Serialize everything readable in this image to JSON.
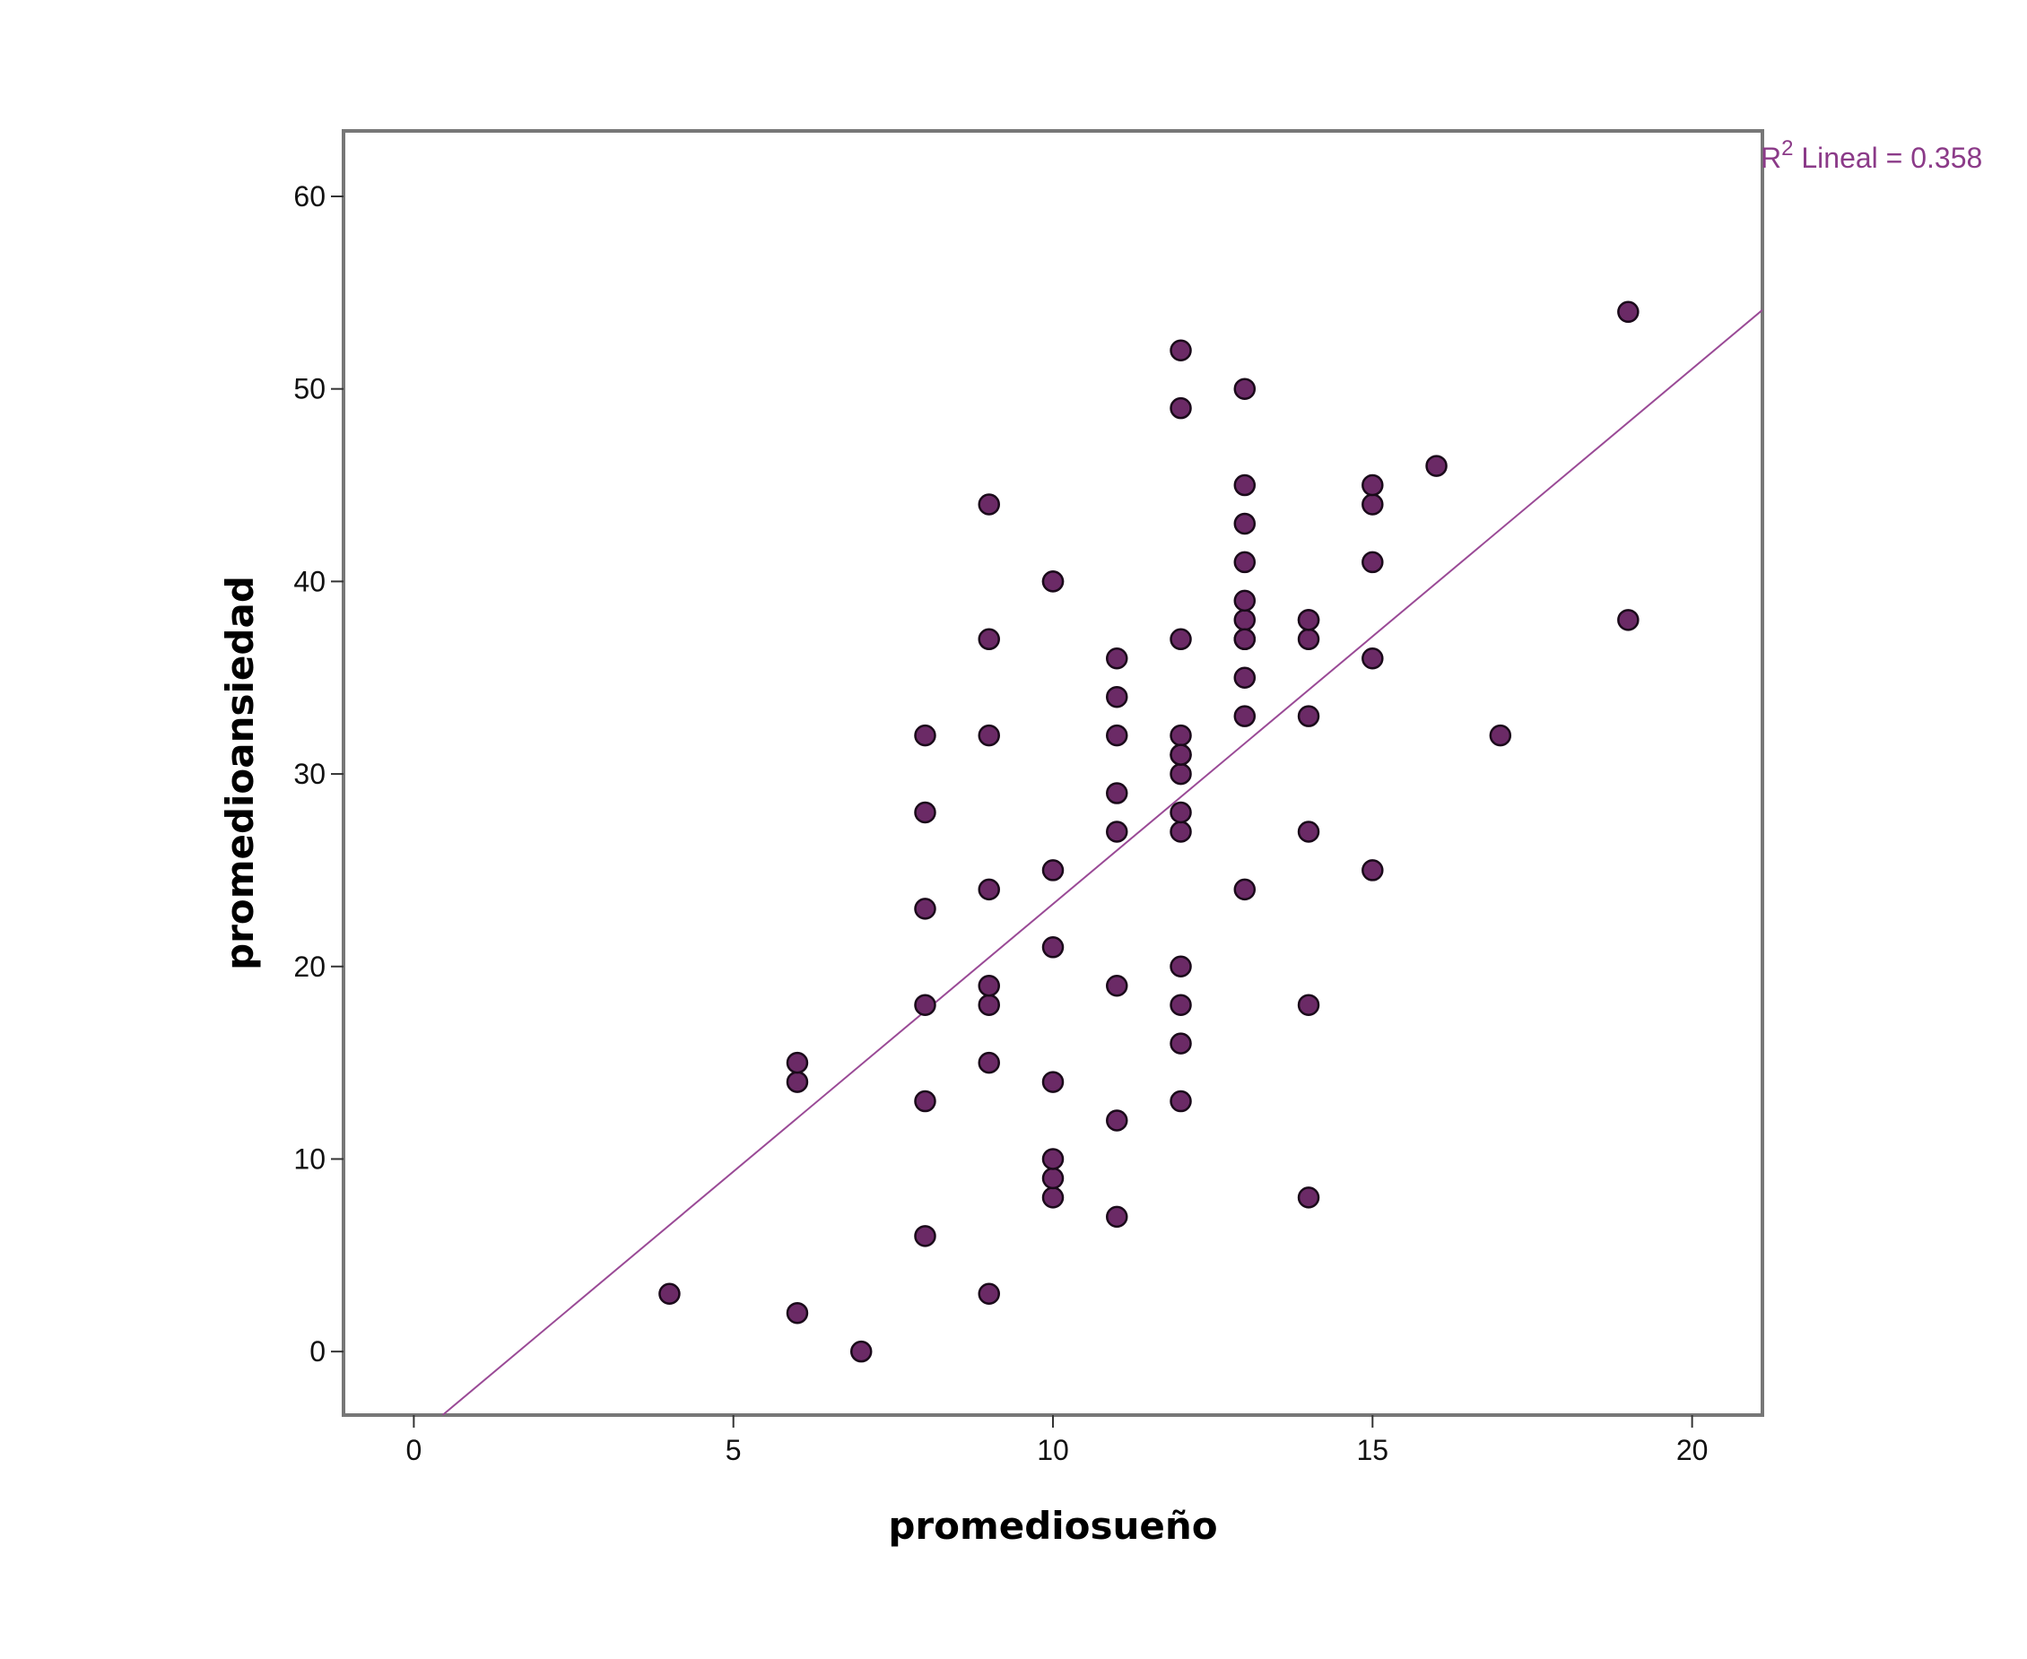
{
  "chart_data": {
    "type": "scatter",
    "title": "",
    "xlabel": "promediosueño",
    "ylabel": "promedioansiedad",
    "xlim": [
      -1.1,
      21.1
    ],
    "ylim": [
      -3.3,
      63.4
    ],
    "xticks": [
      0,
      5,
      10,
      15,
      20
    ],
    "yticks": [
      0,
      10,
      20,
      30,
      40,
      50,
      60
    ],
    "grid": false,
    "legend": "none",
    "colors": {
      "point": "#6b2a66",
      "point_stroke": "#1a0a1a",
      "fit_line": "#9a4a96",
      "fit_label": "#8b3a88",
      "frame": "#777777"
    },
    "fit_line": {
      "label_prefix": "R",
      "label_sup": "2",
      "label_suffix": " Lineal = 0.358",
      "r2": 0.358,
      "x": [
        0.45,
        21.1
      ],
      "y": [
        -3.3,
        54.1
      ]
    },
    "series": [
      {
        "x": [
          4,
          6,
          6,
          6,
          7,
          8,
          8,
          8,
          8,
          8,
          8,
          9,
          9,
          9,
          9,
          9,
          9,
          9,
          9,
          10,
          10,
          10,
          10,
          10,
          10,
          10,
          10,
          11,
          11,
          11,
          11,
          11,
          11,
          11,
          11,
          12,
          12,
          12,
          12,
          12,
          12,
          12,
          12,
          12,
          12,
          12,
          12,
          12,
          13,
          13,
          13,
          13,
          13,
          13,
          13,
          13,
          13,
          13,
          13,
          14,
          14,
          14,
          14,
          14,
          14,
          14,
          15,
          15,
          15,
          15,
          15,
          16,
          17,
          19,
          19
        ],
        "y": [
          3,
          2,
          14,
          15,
          0,
          6,
          13,
          18,
          23,
          28,
          32,
          3,
          15,
          18,
          19,
          24,
          32,
          37,
          44,
          8,
          9,
          10,
          14,
          21,
          25,
          40,
          40,
          7,
          12,
          19,
          27,
          29,
          32,
          34,
          36,
          13,
          16,
          18,
          20,
          27,
          28,
          30,
          31,
          32,
          37,
          49,
          52,
          31,
          24,
          33,
          35,
          37,
          38,
          39,
          41,
          43,
          45,
          50,
          37,
          8,
          18,
          27,
          33,
          37,
          38,
          38,
          25,
          36,
          41,
          44,
          45,
          46,
          32,
          38,
          54
        ]
      }
    ]
  }
}
